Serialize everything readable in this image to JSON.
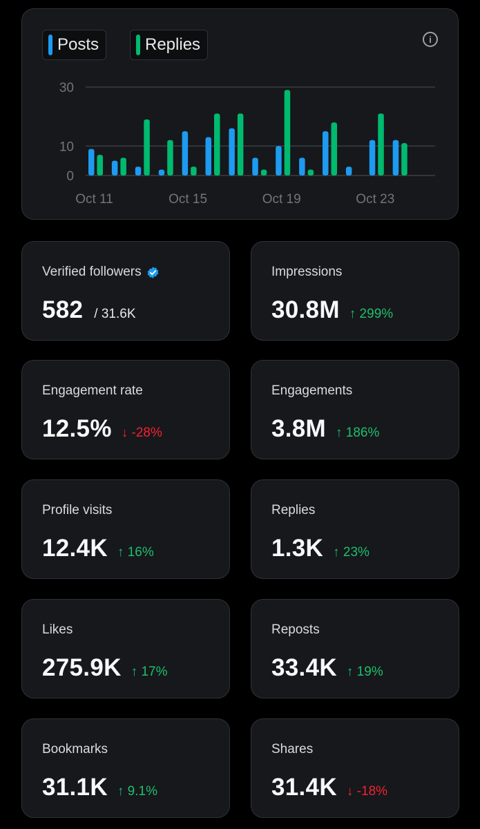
{
  "colors": {
    "posts": "#1d9bf0",
    "replies": "#00ba6f",
    "up": "#1fbf6b",
    "down": "#f4212e",
    "verified": "#1d9bf0"
  },
  "chart": {
    "legend": {
      "posts": "Posts",
      "replies": "Replies"
    },
    "info_icon": "info-circle-icon"
  },
  "chart_data": {
    "type": "bar",
    "ylim": [
      0,
      30
    ],
    "yticks": [
      "0",
      "10",
      "30"
    ],
    "xticks": [
      "Oct 11",
      "Oct 15",
      "Oct 19",
      "Oct 23"
    ],
    "categories": [
      "Oct 11",
      "Oct 12",
      "Oct 13",
      "Oct 14",
      "Oct 15",
      "Oct 16",
      "Oct 17",
      "Oct 18",
      "Oct 19",
      "Oct 20",
      "Oct 21",
      "Oct 22",
      "Oct 23",
      "Oct 24"
    ],
    "series": [
      {
        "name": "Posts",
        "values": [
          9,
          5,
          3,
          2,
          15,
          13,
          16,
          6,
          10,
          6,
          15,
          3,
          12,
          12
        ]
      },
      {
        "name": "Replies",
        "values": [
          7,
          6,
          19,
          12,
          3,
          21,
          21,
          2,
          29,
          2,
          18,
          0,
          21,
          11
        ]
      }
    ],
    "grid": true
  },
  "stats": [
    {
      "label": "Verified followers",
      "value": "582",
      "sub": "/ 31.6K",
      "verified": true
    },
    {
      "label": "Impressions",
      "value": "30.8M",
      "change": "↑ 299%",
      "direction": "up"
    },
    {
      "label": "Engagement rate",
      "value": "12.5%",
      "change": "↓ -28%",
      "direction": "down"
    },
    {
      "label": "Engagements",
      "value": "3.8M",
      "change": "↑ 186%",
      "direction": "up"
    },
    {
      "label": "Profile visits",
      "value": "12.4K",
      "change": "↑ 16%",
      "direction": "up"
    },
    {
      "label": "Replies",
      "value": "1.3K",
      "change": "↑ 23%",
      "direction": "up"
    },
    {
      "label": "Likes",
      "value": "275.9K",
      "change": "↑ 17%",
      "direction": "up"
    },
    {
      "label": "Reposts",
      "value": "33.4K",
      "change": "↑ 19%",
      "direction": "up"
    },
    {
      "label": "Bookmarks",
      "value": "31.1K",
      "change": "↑ 9.1%",
      "direction": "up"
    },
    {
      "label": "Shares",
      "value": "31.4K",
      "change": "↓ -18%",
      "direction": "down"
    }
  ]
}
